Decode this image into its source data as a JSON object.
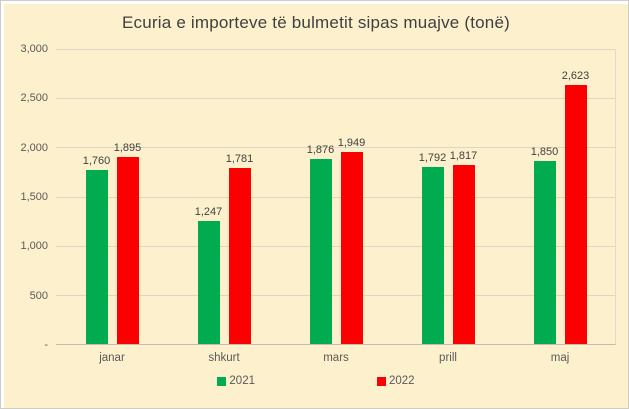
{
  "frame": {
    "background_color": "#FDF1CD",
    "border_color": "#CDCDC5"
  },
  "chart_data": {
    "type": "bar",
    "title": "Ecuria e importeve të bulmetit sipas muajve (tonë)",
    "xlabel": "",
    "ylabel": "",
    "categories": [
      "janar",
      "shkurt",
      "mars",
      "prill",
      "maj"
    ],
    "series": [
      {
        "name": "2021",
        "color": "#00AC4F",
        "values": [
          1760,
          1247,
          1876,
          1792,
          1850
        ],
        "labels": [
          "1,760",
          "1,247",
          "1,876",
          "1,792",
          "1,850"
        ]
      },
      {
        "name": "2022",
        "color": "#FB0000",
        "values": [
          1895,
          1781,
          1949,
          1817,
          2623
        ],
        "labels": [
          "1,895",
          "1,781",
          "1,949",
          "1,817",
          "2,623"
        ]
      }
    ],
    "ylim": [
      0,
      3000
    ],
    "yticks": [
      {
        "value": 3000,
        "label": "3,000"
      },
      {
        "value": 2500,
        "label": "2,500"
      },
      {
        "value": 2000,
        "label": "2,000"
      },
      {
        "value": 1500,
        "label": "1,500"
      },
      {
        "value": 1000,
        "label": "1,000"
      },
      {
        "value": 500,
        "label": "500"
      },
      {
        "value": 0,
        "label": "-"
      }
    ],
    "grid": true,
    "legend_position": "bottom"
  }
}
